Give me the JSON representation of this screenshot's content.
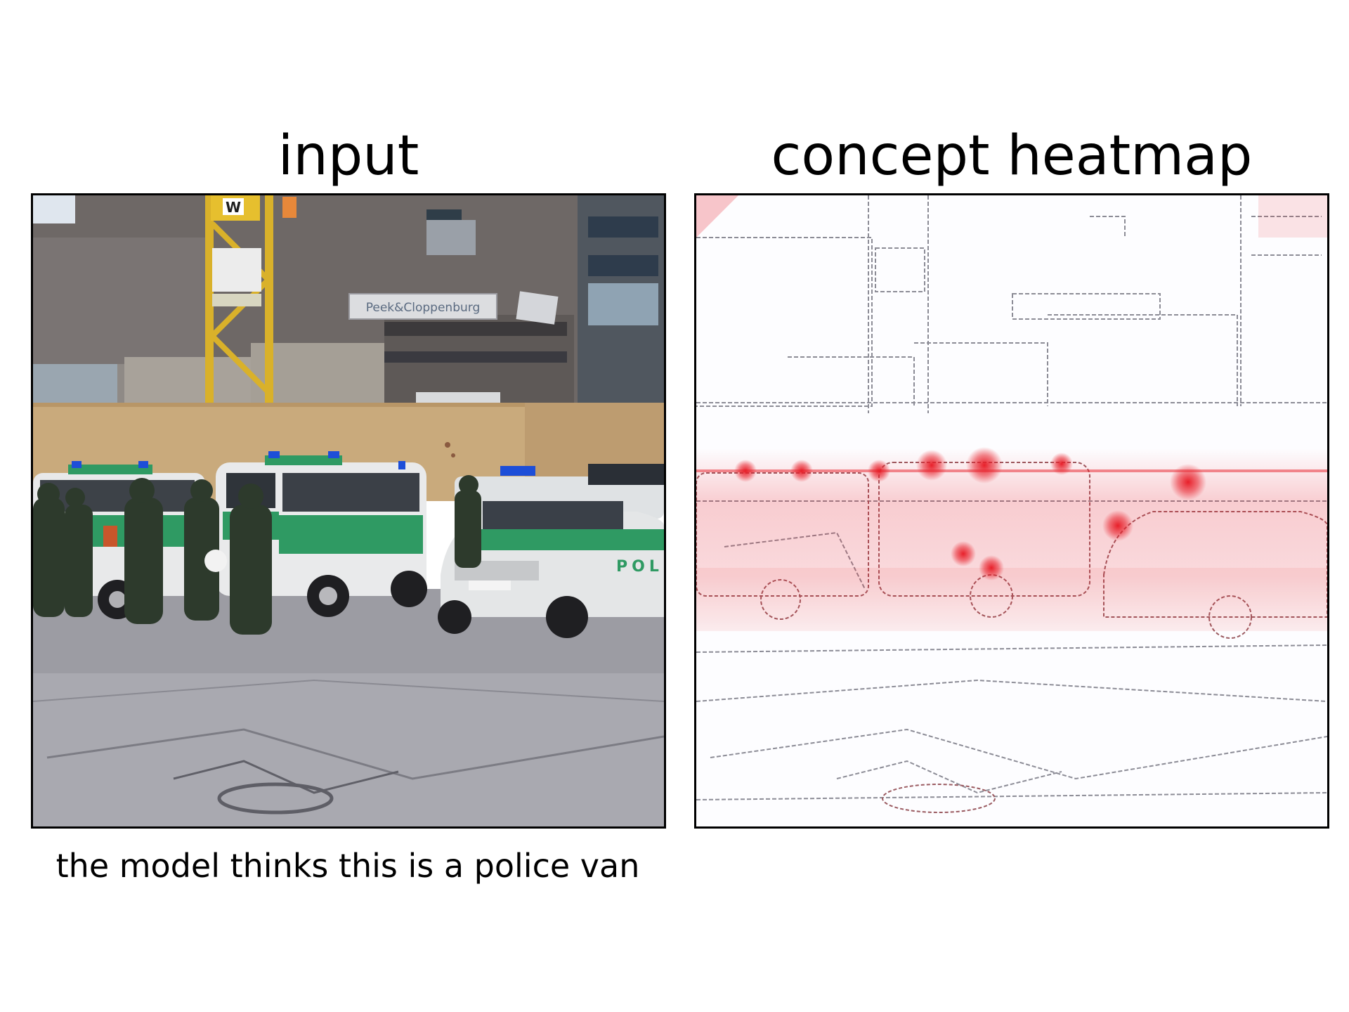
{
  "figure": {
    "left_title": "input",
    "right_title": "concept heatmap",
    "caption": "the model thinks this is a police van"
  },
  "image_text": {
    "store_sign": "Peek&Cloppenburg",
    "crane_sign": "W",
    "car_door": "POL"
  },
  "colors": {
    "heat": "#e8202a",
    "edge": "#8c8c96",
    "van_green": "#2f9a63",
    "hoarding": "#c9aa7c",
    "building": "#6e6866",
    "pavement": "#a9a9b0",
    "crane": "#d9b12a"
  }
}
